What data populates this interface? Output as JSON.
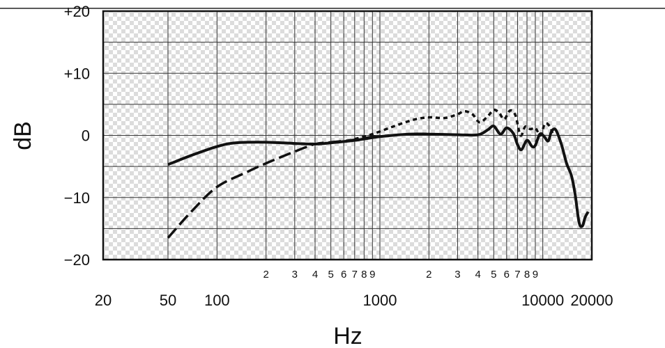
{
  "chart_data": {
    "type": "line",
    "title": "",
    "xlabel": "Hz",
    "ylabel": "dB",
    "x_scale": "log",
    "xlim": [
      20,
      20000
    ],
    "ylim": [
      -20,
      20
    ],
    "grid": true,
    "x_major_ticks": [
      {
        "value": 20,
        "label": "20"
      },
      {
        "value": 50,
        "label": "50"
      },
      {
        "value": 100,
        "label": "100"
      },
      {
        "value": 1000,
        "label": "1000"
      },
      {
        "value": 10000,
        "label": "10000"
      },
      {
        "value": 20000,
        "label": "20000"
      }
    ],
    "x_minor_ticks": [
      {
        "value": 200,
        "label": "2"
      },
      {
        "value": 300,
        "label": "3"
      },
      {
        "value": 400,
        "label": "4"
      },
      {
        "value": 500,
        "label": "5"
      },
      {
        "value": 600,
        "label": "6"
      },
      {
        "value": 700,
        "label": "7"
      },
      {
        "value": 800,
        "label": "8"
      },
      {
        "value": 900,
        "label": "9"
      },
      {
        "value": 2000,
        "label": "2"
      },
      {
        "value": 3000,
        "label": "3"
      },
      {
        "value": 4000,
        "label": "4"
      },
      {
        "value": 5000,
        "label": "5"
      },
      {
        "value": 6000,
        "label": "6"
      },
      {
        "value": 7000,
        "label": "7"
      },
      {
        "value": 8000,
        "label": "8"
      },
      {
        "value": 9000,
        "label": "9"
      }
    ],
    "y_ticks": [
      {
        "value": 20,
        "label": "+20"
      },
      {
        "value": 10,
        "label": "+10"
      },
      {
        "value": 0,
        "label": "0"
      },
      {
        "value": -10,
        "label": "−10"
      },
      {
        "value": -20,
        "label": "−20"
      }
    ],
    "y_minor_gridlines": [
      15,
      5,
      -5,
      -15
    ],
    "series": [
      {
        "style": "solid",
        "color": "#111111",
        "points": [
          [
            50,
            -4.7
          ],
          [
            70,
            -3.2
          ],
          [
            100,
            -1.8
          ],
          [
            130,
            -1.2
          ],
          [
            200,
            -1.1
          ],
          [
            300,
            -1.3
          ],
          [
            400,
            -1.4
          ],
          [
            500,
            -1.2
          ],
          [
            700,
            -0.8
          ],
          [
            1000,
            -0.2
          ],
          [
            1500,
            0.2
          ],
          [
            2000,
            0.2
          ],
          [
            3000,
            0.1
          ],
          [
            4000,
            0.1
          ],
          [
            4600,
            0.9
          ],
          [
            5000,
            1.5
          ],
          [
            5500,
            0.2
          ],
          [
            6000,
            1.2
          ],
          [
            6600,
            0.3
          ],
          [
            7000,
            -1.5
          ],
          [
            7400,
            -2.3
          ],
          [
            8000,
            -0.8
          ],
          [
            8600,
            -1.8
          ],
          [
            9000,
            -1.6
          ],
          [
            9600,
            0.2
          ],
          [
            10200,
            -0.2
          ],
          [
            10800,
            -0.9
          ],
          [
            11300,
            0.6
          ],
          [
            12000,
            0.9
          ],
          [
            13000,
            -1.4
          ],
          [
            14000,
            -4.5
          ],
          [
            15000,
            -6.5
          ],
          [
            15800,
            -9.5
          ],
          [
            16700,
            -14.0
          ],
          [
            17500,
            -14.6
          ],
          [
            18200,
            -13.2
          ],
          [
            19000,
            -12.3
          ]
        ]
      },
      {
        "style": "dashed",
        "color": "#111111",
        "points": [
          [
            50,
            -16.5
          ],
          [
            70,
            -12.2
          ],
          [
            100,
            -8.3
          ],
          [
            150,
            -6.0
          ],
          [
            200,
            -4.5
          ],
          [
            300,
            -2.6
          ],
          [
            400,
            -1.4
          ],
          [
            500,
            -1.1
          ],
          [
            700,
            -0.7
          ],
          [
            1000,
            0.0
          ]
        ]
      },
      {
        "style": "dotted",
        "color": "#111111",
        "points": [
          [
            700,
            -0.6
          ],
          [
            900,
            0.2
          ],
          [
            1200,
            1.4
          ],
          [
            1600,
            2.5
          ],
          [
            2000,
            2.9
          ],
          [
            2500,
            2.8
          ],
          [
            3000,
            3.4
          ],
          [
            3300,
            3.9
          ],
          [
            3700,
            3.4
          ],
          [
            4100,
            2.1
          ],
          [
            4600,
            3.1
          ],
          [
            5000,
            4.1
          ],
          [
            5400,
            3.6
          ],
          [
            5800,
            2.6
          ],
          [
            6300,
            4.0
          ],
          [
            6800,
            3.2
          ],
          [
            7300,
            0.0
          ],
          [
            7800,
            1.4
          ],
          [
            8400,
            1.0
          ],
          [
            9000,
            1.2
          ],
          [
            9700,
            0.0
          ],
          [
            10300,
            1.9
          ],
          [
            11000,
            1.5
          ],
          [
            11500,
            0.3
          ]
        ]
      }
    ]
  }
}
